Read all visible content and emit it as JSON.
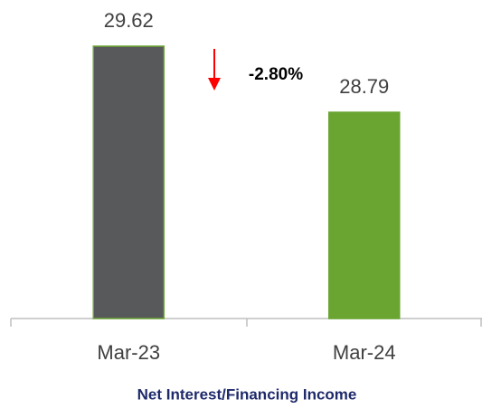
{
  "chart_data": {
    "type": "bar",
    "title": "Net Interest/Financing Income",
    "categories": [
      "Mar-23",
      "Mar-24"
    ],
    "values": [
      29.62,
      28.79
    ],
    "colors": [
      "#58595b",
      "#6aa532"
    ],
    "border_color": "#6aa532",
    "ylim": [
      26.2,
      30
    ],
    "annotation": "-2.80%",
    "annotation_color": "#ff0000"
  }
}
